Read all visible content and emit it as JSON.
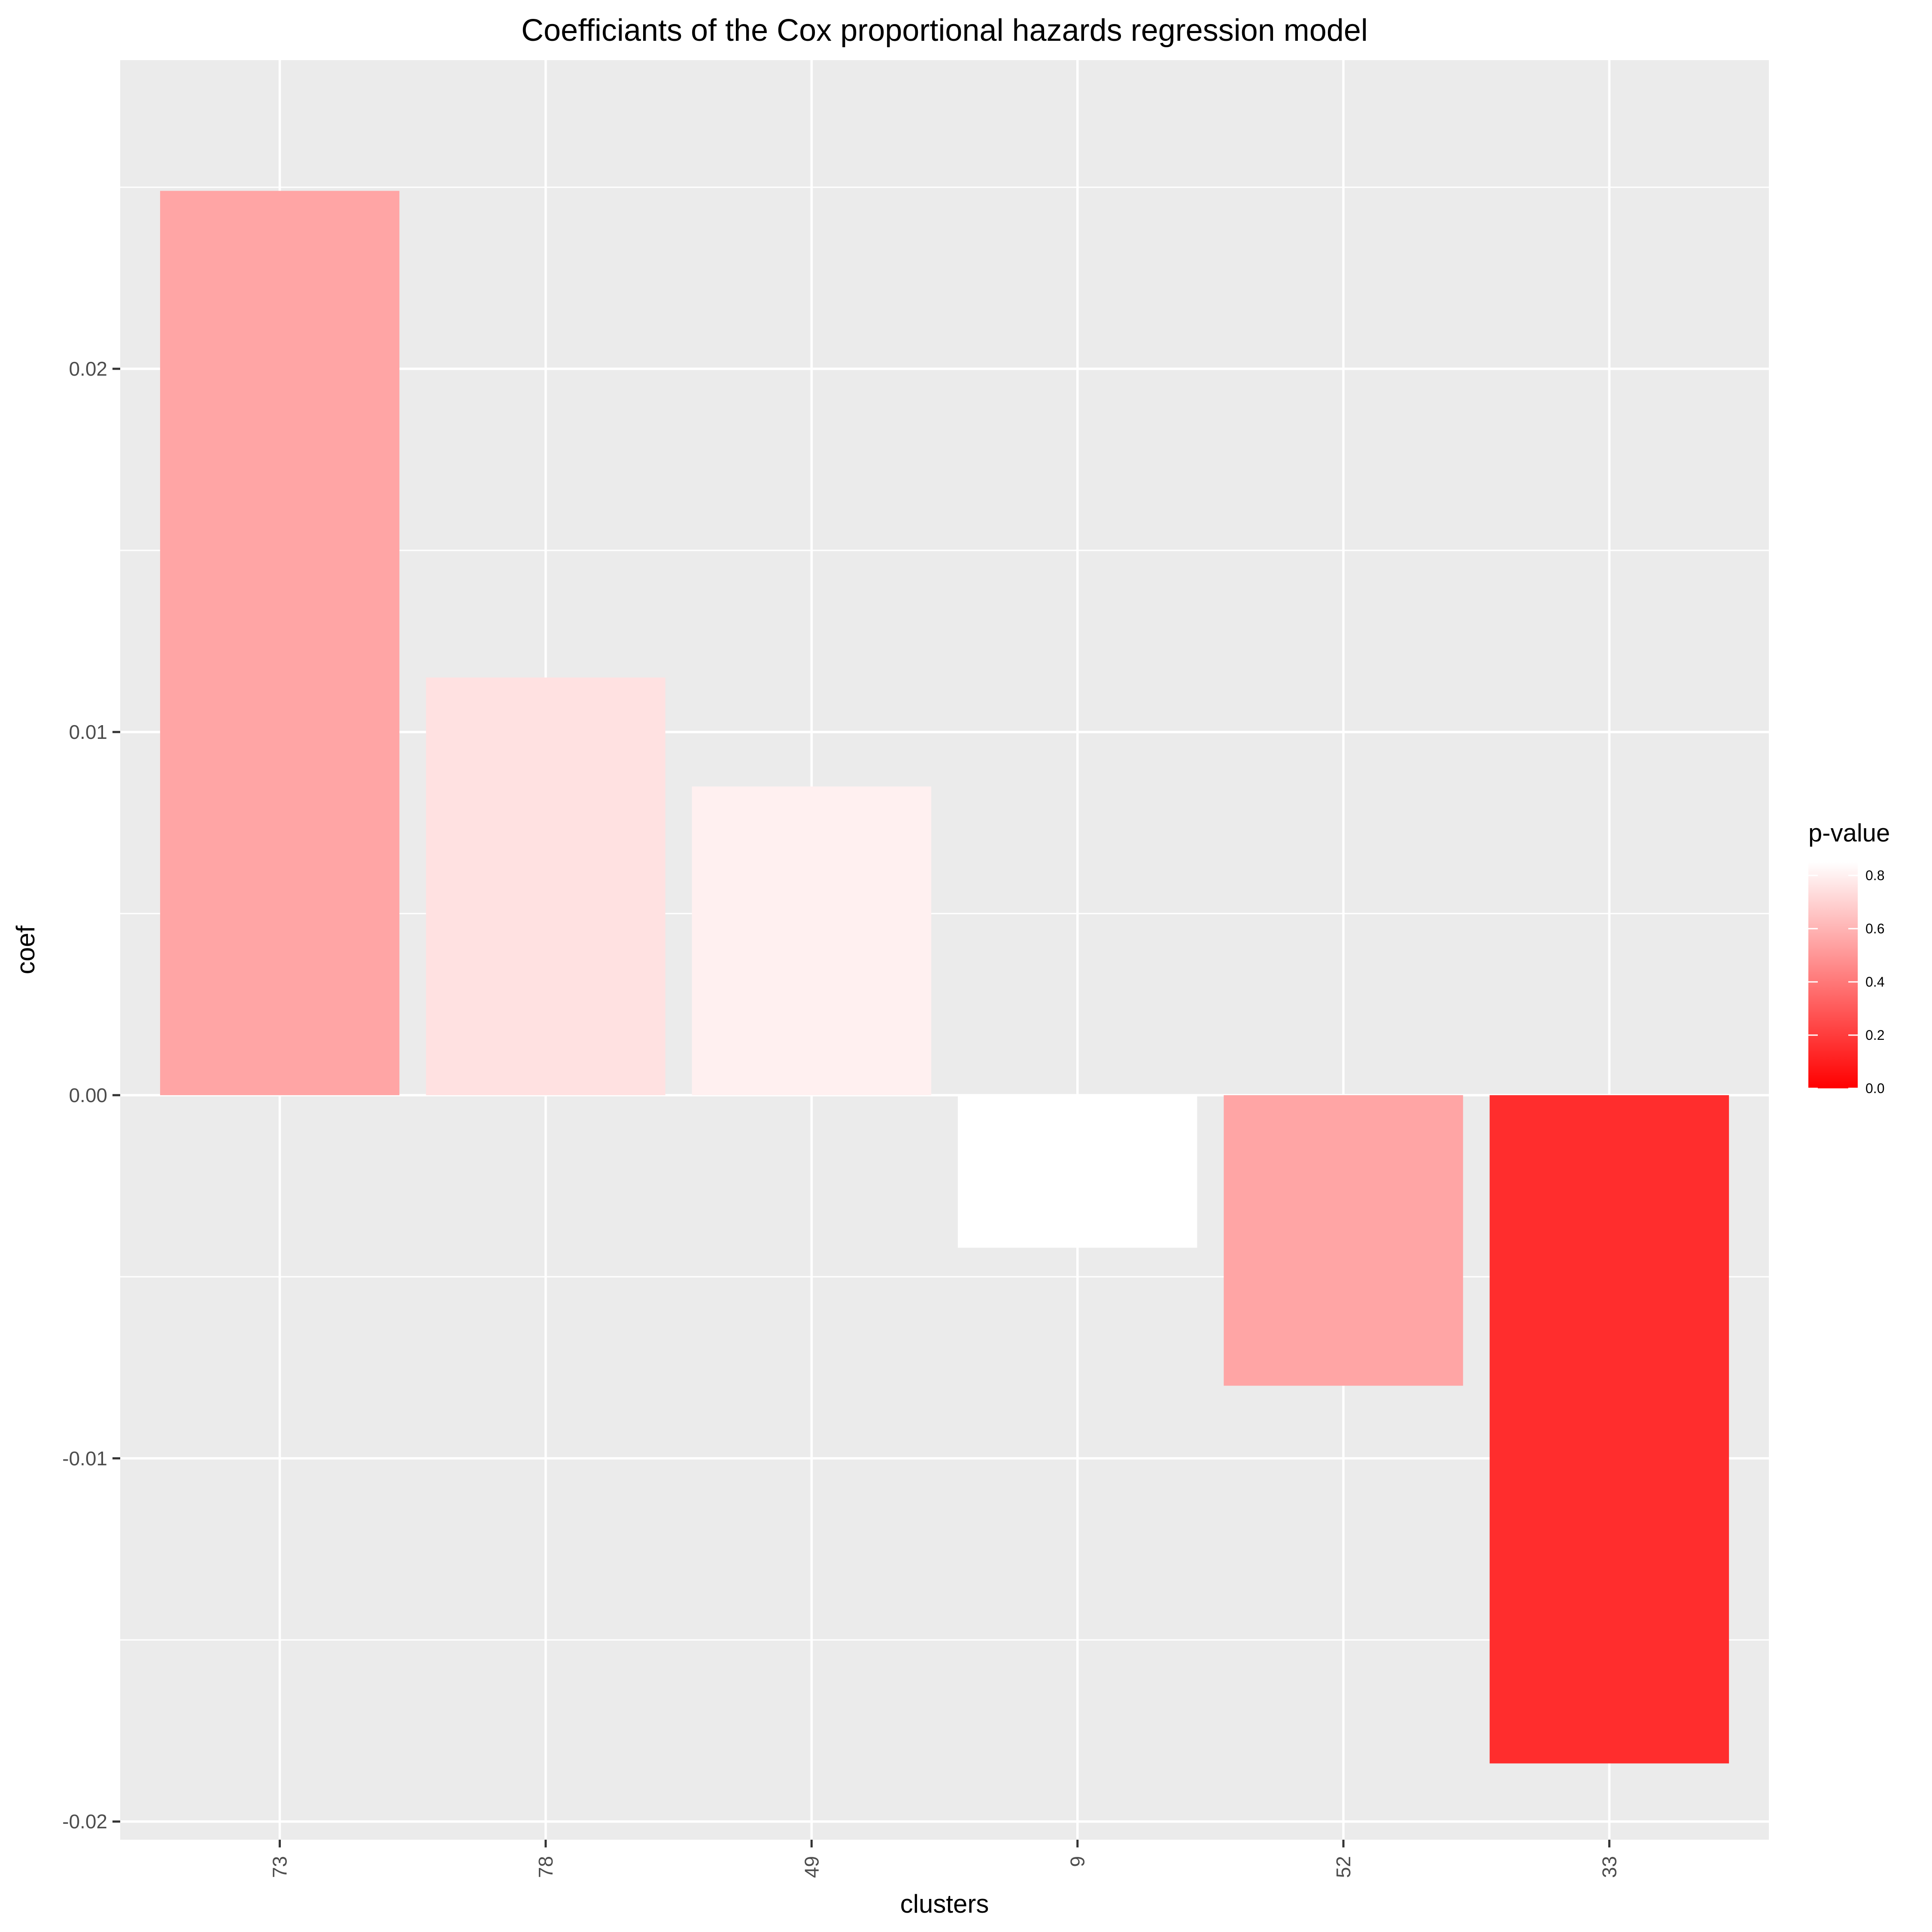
{
  "chart_data": {
    "type": "bar",
    "title": "Coefficiants of the Cox proportional hazards regression model",
    "xlabel": "clusters",
    "ylabel": "coef",
    "categories": [
      "73",
      "78",
      "49",
      "9",
      "52",
      "33"
    ],
    "values": [
      0.0249,
      0.0115,
      0.0085,
      -0.0042,
      -0.008,
      -0.0184
    ],
    "p_values": [
      0.55,
      0.75,
      0.8,
      0.85,
      0.55,
      0.15
    ],
    "ylim": [
      -0.0205,
      0.0285
    ],
    "yticks": [
      -0.02,
      -0.01,
      0.0,
      0.01,
      0.02
    ],
    "ytick_labels": [
      "-0.02",
      "-0.01",
      "0.00",
      "0.01",
      "0.02"
    ],
    "grid": true,
    "legend": {
      "title": "p-value",
      "placement": "right",
      "min": 0.0,
      "max": 0.85,
      "ticks": [
        0.0,
        0.2,
        0.4,
        0.6,
        0.8
      ],
      "tick_labels": [
        "0.0",
        "0.2",
        "0.4",
        "0.6",
        "0.8"
      ],
      "low_color": "#ff0000",
      "high_color": "#ffffff"
    },
    "panel_color": "#ebebeb",
    "grid_color": "#ffffff"
  }
}
